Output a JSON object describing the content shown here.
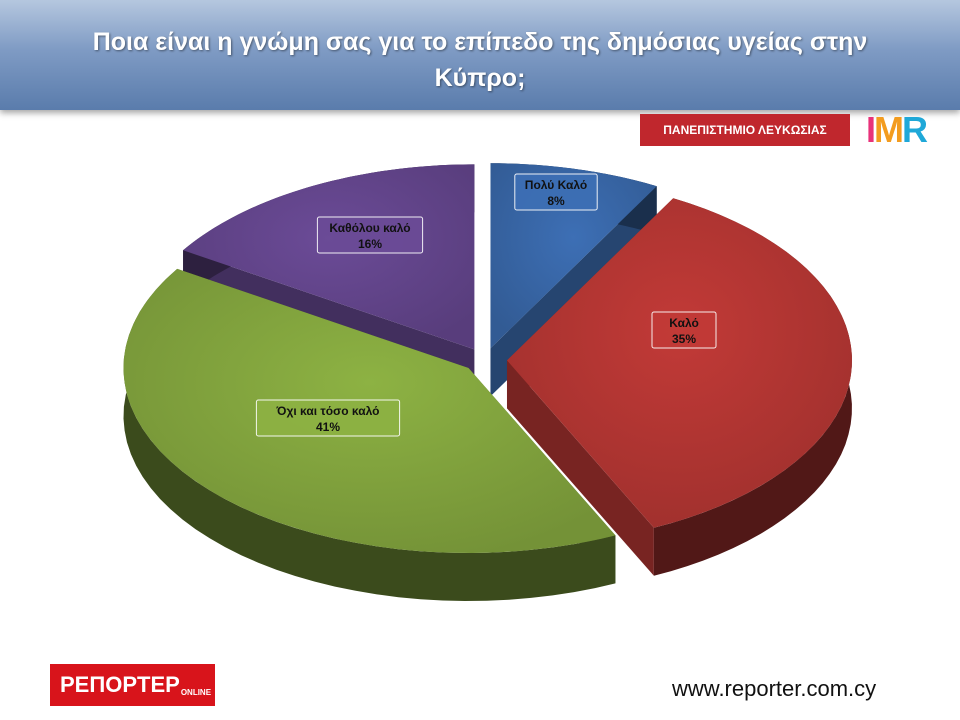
{
  "header": {
    "title": "Ποια είναι η γνώμη σας για το επίπεδο της δημόσιας υγείας στην Κύπρο;"
  },
  "logos": {
    "university": "ΠΑΝΕΠΙΣΤΗΜΙΟ ΛΕΥΚΩΣΙΑΣ",
    "imr": "IMR",
    "reporter_main": "ΡΕΠΟΡΤΕΡ",
    "reporter_sub": "ONLINE"
  },
  "footer": {
    "url": "www.reporter.com.cy"
  },
  "chart_data": {
    "type": "pie",
    "title": "Ποια είναι η γνώμη σας για το επίπεδο της δημόσιας υγείας στην Κύπρο;",
    "slices": [
      {
        "label": "Πολύ Καλό",
        "value": 8,
        "percent_label": "8%",
        "color": "#3d6fb5",
        "exploded": true
      },
      {
        "label": "Καλό",
        "value": 35,
        "percent_label": "35%",
        "color": "#c23a37",
        "exploded": true
      },
      {
        "label": "Όχι και τόσο καλό",
        "value": 41,
        "percent_label": "41%",
        "color": "#8db243",
        "exploded": true
      },
      {
        "label": "Καθόλου καλό",
        "value": 16,
        "percent_label": "16%",
        "color": "#6b4b97",
        "exploded": true
      }
    ],
    "style": "3d-exploded"
  }
}
